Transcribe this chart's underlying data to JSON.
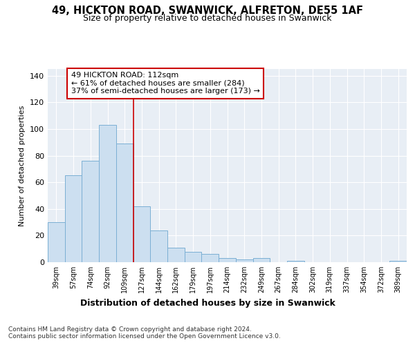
{
  "title_line1": "49, HICKTON ROAD, SWANWICK, ALFRETON, DE55 1AF",
  "title_line2": "Size of property relative to detached houses in Swanwick",
  "xlabel": "Distribution of detached houses by size in Swanwick",
  "ylabel": "Number of detached properties",
  "categories": [
    "39sqm",
    "57sqm",
    "74sqm",
    "92sqm",
    "109sqm",
    "127sqm",
    "144sqm",
    "162sqm",
    "179sqm",
    "197sqm",
    "214sqm",
    "232sqm",
    "249sqm",
    "267sqm",
    "284sqm",
    "302sqm",
    "319sqm",
    "337sqm",
    "354sqm",
    "372sqm",
    "389sqm"
  ],
  "values": [
    30,
    65,
    76,
    103,
    89,
    42,
    24,
    11,
    8,
    6,
    3,
    2,
    3,
    0,
    1,
    0,
    0,
    0,
    0,
    0,
    1
  ],
  "bar_color": "#ccdff0",
  "bar_edge_color": "#7bafd4",
  "vline_x": 4.5,
  "vline_color": "#cc0000",
  "annotation_text": "49 HICKTON ROAD: 112sqm\n← 61% of detached houses are smaller (284)\n37% of semi-detached houses are larger (173) →",
  "annotation_box_facecolor": "#ffffff",
  "annotation_box_edgecolor": "#cc0000",
  "ylim": [
    0,
    145
  ],
  "yticks": [
    0,
    20,
    40,
    60,
    80,
    100,
    120,
    140
  ],
  "bg_color": "#e8eef5",
  "grid_color": "#ffffff",
  "footer1": "Contains HM Land Registry data © Crown copyright and database right 2024.",
  "footer2": "Contains public sector information licensed under the Open Government Licence v3.0."
}
